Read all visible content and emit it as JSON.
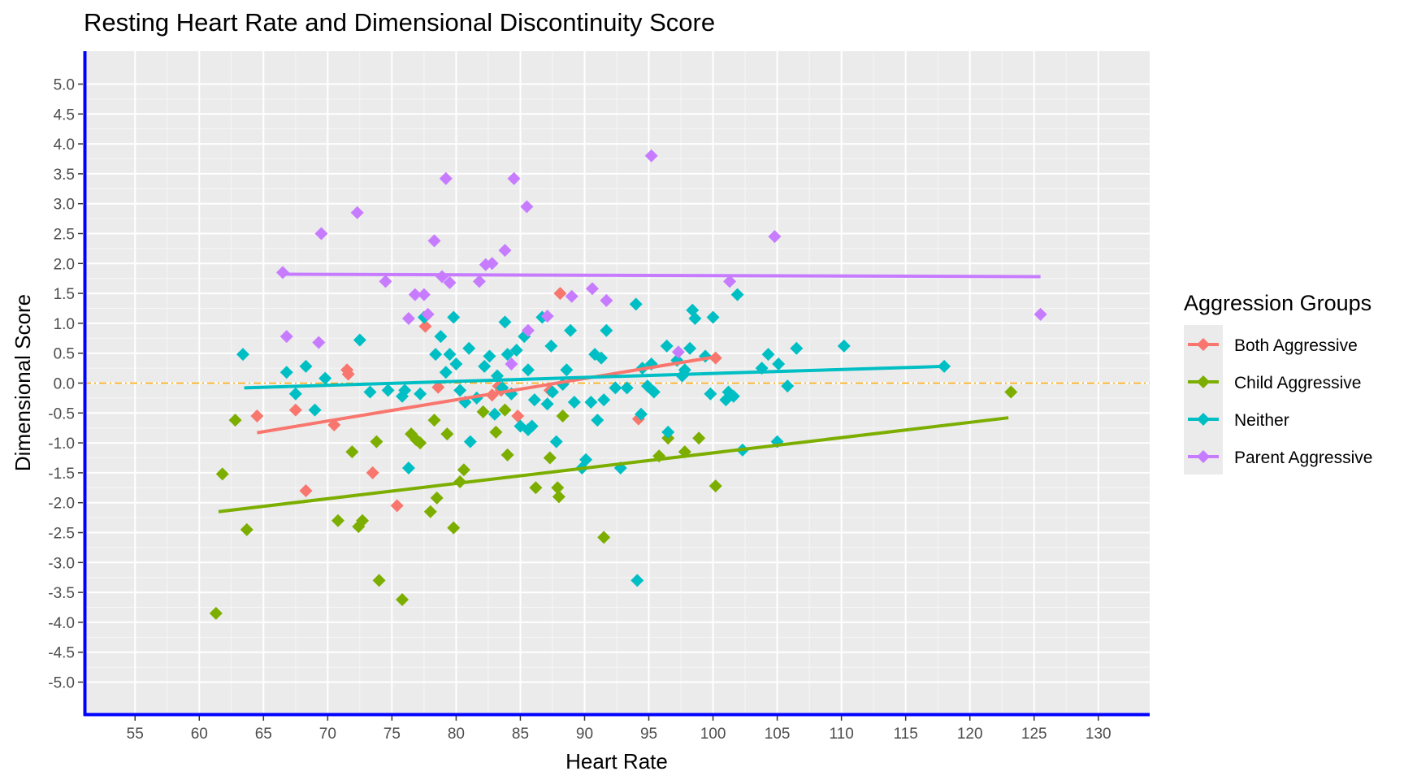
{
  "title": "Resting Heart Rate and Dimensional Discontinuity Score",
  "chart_data": {
    "type": "scatter",
    "title": "Resting Heart Rate and Dimensional Discontinuity Score",
    "xlabel": "Heart Rate",
    "ylabel": "Dimensional Score",
    "xlim": [
      51,
      134
    ],
    "ylim": [
      -5.55,
      5.55
    ],
    "x_ticks": [
      "55",
      "60",
      "65",
      "70",
      "75",
      "80",
      "85",
      "90",
      "95",
      "100",
      "105",
      "110",
      "115",
      "120",
      "125",
      "130"
    ],
    "y_ticks": [
      "5.0",
      "4.5",
      "4.0",
      "3.5",
      "3.0",
      "2.5",
      "2.0",
      "1.5",
      "1.0",
      "0.5",
      "0.0",
      "-0.5",
      "-1.0",
      "-1.5",
      "-2.0",
      "-2.5",
      "-3.0",
      "-3.5",
      "-4.0",
      "-4.5",
      "-5.0"
    ],
    "grid": true,
    "reference_line": {
      "y": 0,
      "color": "#FFA500",
      "style": "dash-dot"
    },
    "legend": {
      "title": "Aggression Groups",
      "placement": "right"
    },
    "series": [
      {
        "name": "Both Aggressive",
        "color": "#F8766D",
        "trend": {
          "x": [
            64.5,
            100.5
          ],
          "y": [
            -0.83,
            0.45
          ]
        },
        "points": [
          [
            64.5,
            -0.55
          ],
          [
            67.5,
            -0.45
          ],
          [
            68.3,
            -1.8
          ],
          [
            70.5,
            -0.7
          ],
          [
            71.5,
            0.22
          ],
          [
            71.6,
            0.15
          ],
          [
            73.5,
            -1.5
          ],
          [
            75.4,
            -2.05
          ],
          [
            77.6,
            0.95
          ],
          [
            78.6,
            -0.07
          ],
          [
            82.8,
            -0.2
          ],
          [
            83.3,
            -0.05
          ],
          [
            83.5,
            -0.12
          ],
          [
            84.8,
            -0.55
          ],
          [
            87.3,
            -0.12
          ],
          [
            88.1,
            1.5
          ],
          [
            94.2,
            -0.6
          ],
          [
            100.2,
            0.42
          ]
        ]
      },
      {
        "name": "Child Aggressive",
        "color": "#7CAE00",
        "trend": {
          "x": [
            61.5,
            123
          ],
          "y": [
            -2.15,
            -0.58
          ]
        },
        "points": [
          [
            61.3,
            -3.85
          ],
          [
            61.8,
            -1.52
          ],
          [
            62.8,
            -0.62
          ],
          [
            63.7,
            -2.45
          ],
          [
            70.8,
            -2.3
          ],
          [
            71.9,
            -1.15
          ],
          [
            72.4,
            -2.4
          ],
          [
            72.7,
            -2.3
          ],
          [
            73.8,
            -0.98
          ],
          [
            74.0,
            -3.3
          ],
          [
            75.8,
            -3.62
          ],
          [
            76.5,
            -0.85
          ],
          [
            76.9,
            -0.95
          ],
          [
            77.2,
            -1.0
          ],
          [
            78.0,
            -2.15
          ],
          [
            78.3,
            -0.62
          ],
          [
            78.5,
            -1.92
          ],
          [
            79.3,
            -0.85
          ],
          [
            79.8,
            -2.42
          ],
          [
            80.3,
            -1.65
          ],
          [
            80.6,
            -1.45
          ],
          [
            82.1,
            -0.48
          ],
          [
            83.1,
            -0.82
          ],
          [
            83.8,
            -0.45
          ],
          [
            84.0,
            -1.2
          ],
          [
            86.2,
            -1.75
          ],
          [
            87.3,
            -1.25
          ],
          [
            87.9,
            -1.75
          ],
          [
            88.0,
            -1.9
          ],
          [
            88.3,
            -0.55
          ],
          [
            91.5,
            -2.58
          ],
          [
            95.8,
            -1.22
          ],
          [
            96.5,
            -0.92
          ],
          [
            97.8,
            -1.15
          ],
          [
            98.9,
            -0.92
          ],
          [
            100.2,
            -1.72
          ],
          [
            123.2,
            -0.15
          ]
        ]
      },
      {
        "name": "Neither",
        "color": "#00BFC4",
        "trend": {
          "x": [
            63.5,
            118
          ],
          "y": [
            -0.08,
            0.28
          ]
        },
        "points": [
          [
            63.4,
            0.48
          ],
          [
            66.8,
            0.18
          ],
          [
            67.5,
            -0.18
          ],
          [
            68.3,
            0.28
          ],
          [
            69.0,
            -0.45
          ],
          [
            69.8,
            0.08
          ],
          [
            72.5,
            0.72
          ],
          [
            73.3,
            -0.15
          ],
          [
            74.7,
            -0.12
          ],
          [
            75.8,
            -0.22
          ],
          [
            76.0,
            -0.12
          ],
          [
            76.3,
            -1.42
          ],
          [
            77.2,
            -0.18
          ],
          [
            77.5,
            1.1
          ],
          [
            78.4,
            0.48
          ],
          [
            78.8,
            0.78
          ],
          [
            79.2,
            0.18
          ],
          [
            79.5,
            0.48
          ],
          [
            79.8,
            1.1
          ],
          [
            80.0,
            0.32
          ],
          [
            80.3,
            -0.12
          ],
          [
            80.7,
            -0.32
          ],
          [
            81.0,
            0.58
          ],
          [
            81.1,
            -0.98
          ],
          [
            81.6,
            -0.25
          ],
          [
            82.2,
            0.28
          ],
          [
            82.6,
            0.45
          ],
          [
            83.0,
            -0.52
          ],
          [
            83.2,
            0.12
          ],
          [
            83.6,
            -0.08
          ],
          [
            83.8,
            1.02
          ],
          [
            84.0,
            0.48
          ],
          [
            84.3,
            -0.18
          ],
          [
            84.7,
            0.55
          ],
          [
            85.0,
            -0.72
          ],
          [
            85.3,
            0.78
          ],
          [
            85.6,
            0.22
          ],
          [
            85.6,
            -0.78
          ],
          [
            85.9,
            -0.72
          ],
          [
            86.1,
            -0.28
          ],
          [
            86.7,
            1.1
          ],
          [
            87.1,
            -0.35
          ],
          [
            87.4,
            0.62
          ],
          [
            87.5,
            -0.15
          ],
          [
            87.8,
            -0.98
          ],
          [
            88.3,
            -0.02
          ],
          [
            88.6,
            0.22
          ],
          [
            88.9,
            0.88
          ],
          [
            89.2,
            -0.32
          ],
          [
            89.8,
            -1.42
          ],
          [
            90.1,
            -1.28
          ],
          [
            90.5,
            -0.32
          ],
          [
            90.8,
            0.48
          ],
          [
            91.0,
            -0.62
          ],
          [
            91.3,
            0.42
          ],
          [
            91.5,
            -0.28
          ],
          [
            91.7,
            0.88
          ],
          [
            92.4,
            -0.08
          ],
          [
            92.8,
            -1.42
          ],
          [
            93.3,
            -0.08
          ],
          [
            94.0,
            1.32
          ],
          [
            94.1,
            -3.3
          ],
          [
            94.4,
            -0.52
          ],
          [
            94.5,
            0.25
          ],
          [
            94.9,
            -0.05
          ],
          [
            95.2,
            0.32
          ],
          [
            95.4,
            -0.15
          ],
          [
            96.4,
            0.62
          ],
          [
            96.5,
            -0.82
          ],
          [
            97.2,
            0.38
          ],
          [
            97.6,
            0.12
          ],
          [
            97.8,
            0.22
          ],
          [
            98.2,
            0.58
          ],
          [
            98.4,
            1.22
          ],
          [
            98.6,
            1.08
          ],
          [
            99.4,
            0.45
          ],
          [
            99.8,
            -0.18
          ],
          [
            100.0,
            1.1
          ],
          [
            101.0,
            -0.28
          ],
          [
            101.2,
            -0.15
          ],
          [
            101.6,
            -0.22
          ],
          [
            101.9,
            1.48
          ],
          [
            102.3,
            -1.12
          ],
          [
            103.8,
            0.25
          ],
          [
            104.3,
            0.48
          ],
          [
            105.0,
            -0.98
          ],
          [
            105.1,
            0.32
          ],
          [
            105.8,
            -0.05
          ],
          [
            106.5,
            0.58
          ],
          [
            110.2,
            0.62
          ],
          [
            118.0,
            0.28
          ]
        ]
      },
      {
        "name": "Parent Aggressive",
        "color": "#C77CFF",
        "trend": {
          "x": [
            66.5,
            125.5
          ],
          "y": [
            1.82,
            1.78
          ]
        },
        "points": [
          [
            66.5,
            1.85
          ],
          [
            66.8,
            0.78
          ],
          [
            69.3,
            0.68
          ],
          [
            69.5,
            2.5
          ],
          [
            72.3,
            2.85
          ],
          [
            74.5,
            1.7
          ],
          [
            76.3,
            1.08
          ],
          [
            76.8,
            1.48
          ],
          [
            77.5,
            1.48
          ],
          [
            77.8,
            1.15
          ],
          [
            78.3,
            2.38
          ],
          [
            78.9,
            1.78
          ],
          [
            79.2,
            3.42
          ],
          [
            79.5,
            1.68
          ],
          [
            81.8,
            1.7
          ],
          [
            82.3,
            1.98
          ],
          [
            82.8,
            2.0
          ],
          [
            83.8,
            2.22
          ],
          [
            84.3,
            0.32
          ],
          [
            84.5,
            3.42
          ],
          [
            85.5,
            2.95
          ],
          [
            85.6,
            0.88
          ],
          [
            87.1,
            1.12
          ],
          [
            89.0,
            1.45
          ],
          [
            90.6,
            1.58
          ],
          [
            91.7,
            1.38
          ],
          [
            95.2,
            3.8
          ],
          [
            97.3,
            0.52
          ],
          [
            101.3,
            1.7
          ],
          [
            104.8,
            2.45
          ],
          [
            125.5,
            1.15
          ]
        ]
      }
    ]
  }
}
